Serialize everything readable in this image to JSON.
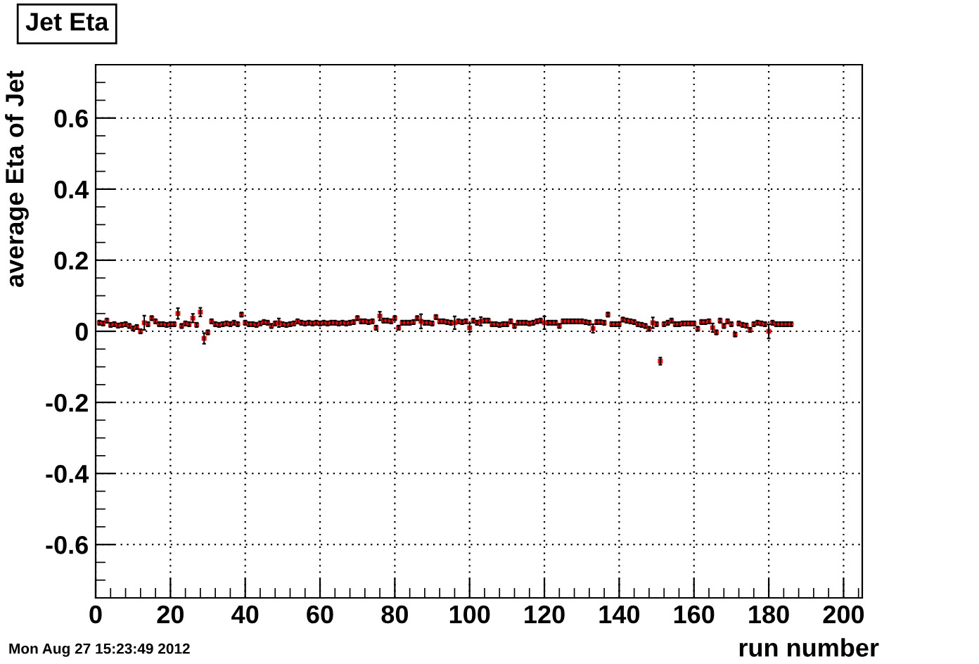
{
  "chart_data": {
    "type": "scatter",
    "title": "Jet Eta",
    "xlabel": "run number",
    "ylabel": "average Eta of Jet",
    "annotations": [
      "Mon Aug 27 15:23:49 2012"
    ],
    "x": [
      1,
      2,
      3,
      4,
      5,
      6,
      7,
      8,
      9,
      10,
      11,
      12,
      13,
      14,
      15,
      16,
      17,
      18,
      19,
      20,
      21,
      22,
      23,
      24,
      25,
      26,
      27,
      28,
      29,
      30,
      31,
      32,
      33,
      34,
      35,
      36,
      37,
      38,
      39,
      40,
      41,
      42,
      43,
      44,
      45,
      46,
      47,
      48,
      49,
      50,
      51,
      52,
      53,
      54,
      55,
      56,
      57,
      58,
      59,
      60,
      61,
      62,
      63,
      64,
      65,
      66,
      67,
      68,
      69,
      70,
      71,
      72,
      73,
      74,
      75,
      76,
      77,
      78,
      79,
      80,
      81,
      82,
      83,
      84,
      85,
      86,
      87,
      88,
      89,
      90,
      91,
      92,
      93,
      94,
      95,
      96,
      97,
      98,
      99,
      100,
      101,
      102,
      103,
      104,
      105,
      106,
      107,
      108,
      109,
      110,
      111,
      112,
      113,
      114,
      115,
      116,
      117,
      118,
      119,
      120,
      121,
      122,
      123,
      124,
      125,
      126,
      127,
      128,
      129,
      130,
      131,
      132,
      133,
      134,
      135,
      136,
      137,
      138,
      139,
      140,
      141,
      142,
      143,
      144,
      145,
      146,
      147,
      148,
      149,
      150,
      151,
      152,
      153,
      154,
      155,
      156,
      157,
      158,
      159,
      160,
      161,
      162,
      163,
      164,
      165,
      166,
      167,
      168,
      169,
      170,
      171,
      172,
      173,
      174,
      175,
      176,
      177,
      178,
      179,
      180,
      181,
      182,
      183,
      184,
      185,
      186
    ],
    "series": [
      {
        "color": "#ff0000",
        "values": [
          0.024,
          0.022,
          0.03,
          0.018,
          0.02,
          0.016,
          0.018,
          0.02,
          0.015,
          0.008,
          0.012,
          0.0,
          0.024,
          0.02,
          0.037,
          0.028,
          0.02,
          0.02,
          0.018,
          0.02,
          0.02,
          0.05,
          0.015,
          0.022,
          0.02,
          0.037,
          0.018,
          0.054,
          -0.02,
          -0.003,
          0.028,
          0.02,
          0.018,
          0.02,
          0.022,
          0.02,
          0.024,
          0.02,
          0.047,
          0.024,
          0.02,
          0.02,
          0.018,
          0.022,
          0.026,
          0.024,
          0.015,
          0.022,
          0.024,
          0.02,
          0.018,
          0.02,
          0.022,
          0.028,
          0.024,
          0.022,
          0.024,
          0.022,
          0.024,
          0.022,
          0.024,
          0.022,
          0.024,
          0.024,
          0.022,
          0.024,
          0.022,
          0.024,
          0.026,
          0.037,
          0.028,
          0.028,
          0.026,
          0.028,
          0.01,
          0.043,
          0.03,
          0.03,
          0.028,
          0.037,
          0.01,
          0.024,
          0.024,
          0.024,
          0.026,
          0.037,
          0.028,
          0.024,
          0.024,
          0.022,
          0.04,
          0.028,
          0.028,
          0.026,
          0.024,
          0.024,
          0.028,
          0.026,
          0.028,
          0.01,
          0.03,
          0.024,
          0.028,
          0.03,
          0.03,
          0.02,
          0.02,
          0.018,
          0.02,
          0.02,
          0.028,
          0.015,
          0.024,
          0.024,
          0.024,
          0.022,
          0.024,
          0.028,
          0.03,
          0.024,
          0.024,
          0.024,
          0.024,
          0.015,
          0.028,
          0.028,
          0.028,
          0.028,
          0.028,
          0.028,
          0.026,
          0.024,
          0.008,
          0.026,
          0.026,
          0.024,
          0.047,
          0.02,
          0.02,
          0.02,
          0.033,
          0.03,
          0.028,
          0.026,
          0.02,
          0.018,
          0.015,
          0.007,
          0.024,
          0.02,
          -0.084,
          0.02,
          0.024,
          0.03,
          0.02,
          0.02,
          0.022,
          0.022,
          0.022,
          0.022,
          0.007,
          0.026,
          0.026,
          0.028,
          0.01,
          -0.003,
          0.03,
          0.015,
          0.028,
          0.02,
          -0.009,
          0.022,
          0.018,
          0.016,
          0.004,
          0.02,
          0.024,
          0.022,
          0.02,
          0.0,
          0.024,
          0.02,
          0.02,
          0.02,
          0.02,
          0.02
        ],
        "errors": [
          0.006,
          0.006,
          0.006,
          0.006,
          0.006,
          0.006,
          0.006,
          0.006,
          0.006,
          0.006,
          0.006,
          0.006,
          0.02,
          0.006,
          0.006,
          0.006,
          0.006,
          0.006,
          0.006,
          0.006,
          0.006,
          0.015,
          0.006,
          0.006,
          0.006,
          0.012,
          0.006,
          0.012,
          0.015,
          0.006,
          0.006,
          0.006,
          0.006,
          0.006,
          0.006,
          0.006,
          0.006,
          0.006,
          0.006,
          0.006,
          0.006,
          0.006,
          0.006,
          0.006,
          0.006,
          0.006,
          0.006,
          0.006,
          0.012,
          0.006,
          0.006,
          0.006,
          0.006,
          0.006,
          0.006,
          0.006,
          0.006,
          0.006,
          0.006,
          0.006,
          0.006,
          0.006,
          0.006,
          0.006,
          0.006,
          0.006,
          0.006,
          0.006,
          0.006,
          0.006,
          0.006,
          0.006,
          0.006,
          0.006,
          0.006,
          0.012,
          0.006,
          0.006,
          0.006,
          0.006,
          0.006,
          0.006,
          0.006,
          0.006,
          0.006,
          0.006,
          0.02,
          0.006,
          0.006,
          0.006,
          0.006,
          0.006,
          0.006,
          0.006,
          0.006,
          0.018,
          0.006,
          0.006,
          0.006,
          0.012,
          0.006,
          0.006,
          0.012,
          0.006,
          0.006,
          0.006,
          0.006,
          0.006,
          0.006,
          0.006,
          0.006,
          0.006,
          0.006,
          0.006,
          0.006,
          0.006,
          0.006,
          0.006,
          0.006,
          0.018,
          0.006,
          0.006,
          0.006,
          0.006,
          0.006,
          0.006,
          0.006,
          0.006,
          0.006,
          0.006,
          0.006,
          0.006,
          0.012,
          0.006,
          0.006,
          0.006,
          0.006,
          0.006,
          0.006,
          0.006,
          0.006,
          0.006,
          0.006,
          0.006,
          0.006,
          0.006,
          0.006,
          0.006,
          0.015,
          0.006,
          0.01,
          0.006,
          0.006,
          0.006,
          0.006,
          0.006,
          0.006,
          0.006,
          0.006,
          0.006,
          0.006,
          0.006,
          0.006,
          0.006,
          0.012,
          0.006,
          0.006,
          0.006,
          0.006,
          0.006,
          0.006,
          0.006,
          0.006,
          0.006,
          0.006,
          0.006,
          0.006,
          0.006,
          0.006,
          0.02,
          0.006,
          0.006,
          0.006,
          0.006,
          0.006,
          0.006
        ]
      }
    ],
    "xlim": [
      0,
      205
    ],
    "xticks": [
      0,
      20,
      40,
      60,
      80,
      100,
      120,
      140,
      160,
      180,
      200
    ],
    "ylim": [
      -0.75,
      0.75
    ],
    "yticks": [
      -0.6,
      -0.4,
      -0.2,
      0,
      0.2,
      0.4,
      0.6
    ],
    "grid": true,
    "marker": "square"
  }
}
